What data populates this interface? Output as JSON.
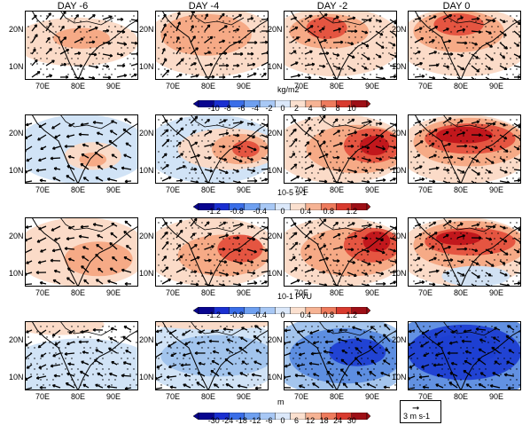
{
  "columns": [
    "DAY -6",
    "DAY -4",
    "DAY -2",
    "DAY 0"
  ],
  "lat_labels": [
    "20N",
    "10N"
  ],
  "lon_labels": [
    "70E",
    "80E",
    "90E"
  ],
  "colorbars": [
    {
      "unit": "kg/m2",
      "ticks": [
        "-10",
        "-8",
        "-6",
        "-4",
        "-2",
        "0",
        "2",
        "4",
        "6",
        "8",
        "10"
      ]
    },
    {
      "unit": "10-5 s-1",
      "ticks": [
        "-1.2",
        "-0.8",
        "-0.4",
        "0",
        "0.4",
        "0.8",
        "1.2"
      ]
    },
    {
      "unit": "10-1 PVU",
      "ticks": [
        "-1.2",
        "-0.8",
        "-0.4",
        "0",
        "0.4",
        "0.8",
        "1.2"
      ]
    },
    {
      "unit": "m",
      "ticks": [
        "-30",
        "-24",
        "-18",
        "-12",
        "-6",
        "0",
        "6",
        "12",
        "18",
        "24",
        "30"
      ]
    }
  ],
  "reference_vector": {
    "symbol": "➞",
    "label": "3 m s-1"
  },
  "colors": {
    "strong_red": "#c0141a",
    "red": "#e4503d",
    "light_red": "#f6a883",
    "pale_red": "#fbd9c5",
    "pale_blue": "#cfe1f6",
    "light_blue": "#9fc2ec",
    "blue": "#5a8be0",
    "strong_blue": "#1e3fd2"
  }
}
